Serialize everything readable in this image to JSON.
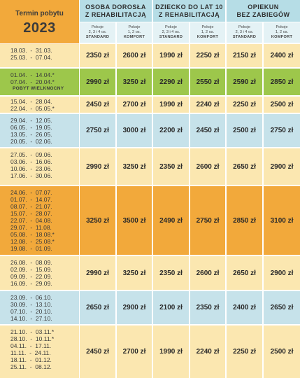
{
  "header": {
    "termin_label": "Termin pobytu",
    "year": "2023",
    "groups": [
      {
        "line1": "OSOBA DOROSŁA",
        "line2": "Z REHABILITACJĄ"
      },
      {
        "line1": "DZIECKO DO LAT 10",
        "line2": "Z REHABILITACJĄ"
      },
      {
        "line1": "OPIEKUN",
        "line2": "BEZ ZABIEGÓW"
      }
    ],
    "subheaders": [
      {
        "line1": "Pokoje",
        "line2": "2, 3 i 4 os.",
        "line3": "STANDARD"
      },
      {
        "line1": "Pokoje",
        "line2": "1, 2 os.",
        "line3": "KOMFORT"
      },
      {
        "line1": "Pokoje",
        "line2": "2, 3 i 4 os.",
        "line3": "STANDARD"
      },
      {
        "line1": "Pokoje",
        "line2": "1, 2 os.",
        "line3": "KOMFORT"
      },
      {
        "line1": "Pokoje",
        "line2": "2, 3 i 4 os.",
        "line3": "STANDARD"
      },
      {
        "line1": "Pokoje",
        "line2": "1, 2 os.",
        "line3": "KOMFORT"
      }
    ]
  },
  "colors": {
    "orange": "#f2a93b",
    "green": "#9dc74b",
    "yellow": "#fbe7b0",
    "blue": "#c6e2ea",
    "header_blue": "#b6dde6",
    "sub_blue": "#e4f2f5"
  },
  "rows": [
    {
      "tone": "yellow",
      "dates": [
        "18.03.  -  31.03.",
        "25.03.  -  07.04."
      ],
      "prices": [
        "2350 zł",
        "2600 zł",
        "1990 zł",
        "2250 zł",
        "2150 zł",
        "2400 zł"
      ]
    },
    {
      "tone": "green",
      "dates": [
        "01.04.  -  14.04.*",
        "07.04.  -  20.04.*"
      ],
      "note": "POBYT WIELKNOCNY",
      "prices": [
        "2990 zł",
        "3250 zł",
        "2290 zł",
        "2550 zł",
        "2590 zł",
        "2850 zł"
      ]
    },
    {
      "tone": "yellow",
      "dates": [
        "15.04.  -  28.04.",
        "22.04.  -  05.05.*"
      ],
      "prices": [
        "2450 zł",
        "2700 zł",
        "1990 zł",
        "2240 zł",
        "2250 zł",
        "2500 zł"
      ]
    },
    {
      "tone": "blue",
      "dates": [
        "29.04.  -  12.05.",
        "06.05.  -  19.05.",
        "13.05.  -  26.05.",
        "20.05.  -  02.06."
      ],
      "prices": [
        "2750 zł",
        "3000 zł",
        "2200 zł",
        "2450 zł",
        "2500 zł",
        "2750 zł"
      ]
    },
    {
      "tone": "yellow",
      "dates": [
        "27.05.  -  09.06.",
        "03.06.  -  16.06.",
        "10.06.  -  23.06.",
        "17.06.  -  30.06."
      ],
      "prices": [
        "2990 zł",
        "3250 zł",
        "2350 zł",
        "2600 zł",
        "2650 zł",
        "2900 zł"
      ]
    },
    {
      "tone": "orange",
      "dates": [
        "24.06.  -  07.07.",
        "01.07.  -  14.07.",
        "08.07.  -  21.07.",
        "15.07.  -  28.07.",
        "22.07.  -  04.08.",
        "29.07.  -  11.08.",
        "05.08.  -  18.08.*",
        "12.08.  -  25.08.*",
        "19.08.  -  01.09."
      ],
      "prices": [
        "3250 zł",
        "3500 zł",
        "2490 zł",
        "2750 zł",
        "2850 zł",
        "3100 zł"
      ]
    },
    {
      "tone": "yellow",
      "dates": [
        "26.08.  -  08.09.",
        "02.09.  -  15.09.",
        "09.09.  -  22.09.",
        "16.09.  -  29.09."
      ],
      "prices": [
        "2990 zł",
        "3250 zł",
        "2350 zł",
        "2600 zł",
        "2650 zł",
        "2900 zł"
      ]
    },
    {
      "tone": "blue",
      "dates": [
        "23.09.  -  06.10.",
        "30.09.  -  13.10.",
        "07.10.  -  20.10.",
        "14.10.  -  27.10."
      ],
      "prices": [
        "2650 zł",
        "2900 zł",
        "2100 zł",
        "2350 zł",
        "2400 zł",
        "2650 zł"
      ]
    },
    {
      "tone": "yellow",
      "dates": [
        "21.10.  -  03.11.*",
        "28.10.  -  10.11.*",
        "04.11.  -  17.11.",
        "11.11.  -  24.11.",
        "18.11.  -  01.12.",
        "25.11.  -  08.12."
      ],
      "prices": [
        "2450 zł",
        "2700 zł",
        "1990 zł",
        "2240 zł",
        "2250 zł",
        "2500 zł"
      ]
    }
  ]
}
